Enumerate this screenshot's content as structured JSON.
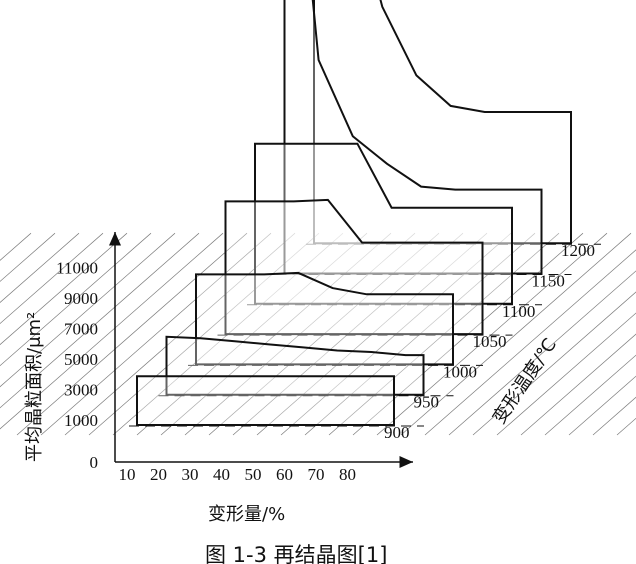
{
  "chart_data": {
    "type": "3d-histogram",
    "ylabel": "平均晶粒面积/μm²",
    "xlabel": "变形量/%",
    "zlabel": "变形温度/℃",
    "caption": "图 1-3  再结晶图[1]",
    "y_ticks": [
      "0",
      "1000",
      "3000",
      "5000",
      "7000",
      "9000",
      "11000"
    ],
    "x_ticks": [
      "10",
      "20",
      "30",
      "40",
      "50",
      "60",
      "70",
      "80"
    ],
    "z_ticks": [
      "900",
      "950",
      "1000",
      "1050",
      "1100",
      "1150",
      "1200"
    ],
    "x_values": [
      10,
      20,
      30,
      40,
      50,
      60,
      70,
      80
    ],
    "series": [
      {
        "name": "900",
        "values": [
          3200,
          3200,
          3200,
          3200,
          3200,
          3200,
          3200,
          3200
        ]
      },
      {
        "name": "950",
        "values": [
          3800,
          3700,
          3500,
          3300,
          3100,
          2900,
          2800,
          2600
        ]
      },
      {
        "name": "1000",
        "values": [
          5900,
          5900,
          5900,
          6000,
          5000,
          4600,
          4600,
          4600
        ]
      },
      {
        "name": "1050",
        "values": [
          8700,
          8700,
          8700,
          8800,
          6000,
          6000,
          6000,
          6000
        ]
      },
      {
        "name": "1100",
        "values": [
          10500,
          10500,
          10500,
          10500,
          6300,
          6300,
          6300,
          6300
        ]
      },
      {
        "name": "1150",
        "values": [
          37000,
          14000,
          9000,
          7200,
          5700,
          5500,
          5500,
          5500
        ]
      },
      {
        "name": "1200",
        "values": [
          45000,
          24000,
          15500,
          11000,
          9000,
          8600,
          8600,
          8600
        ]
      }
    ]
  }
}
